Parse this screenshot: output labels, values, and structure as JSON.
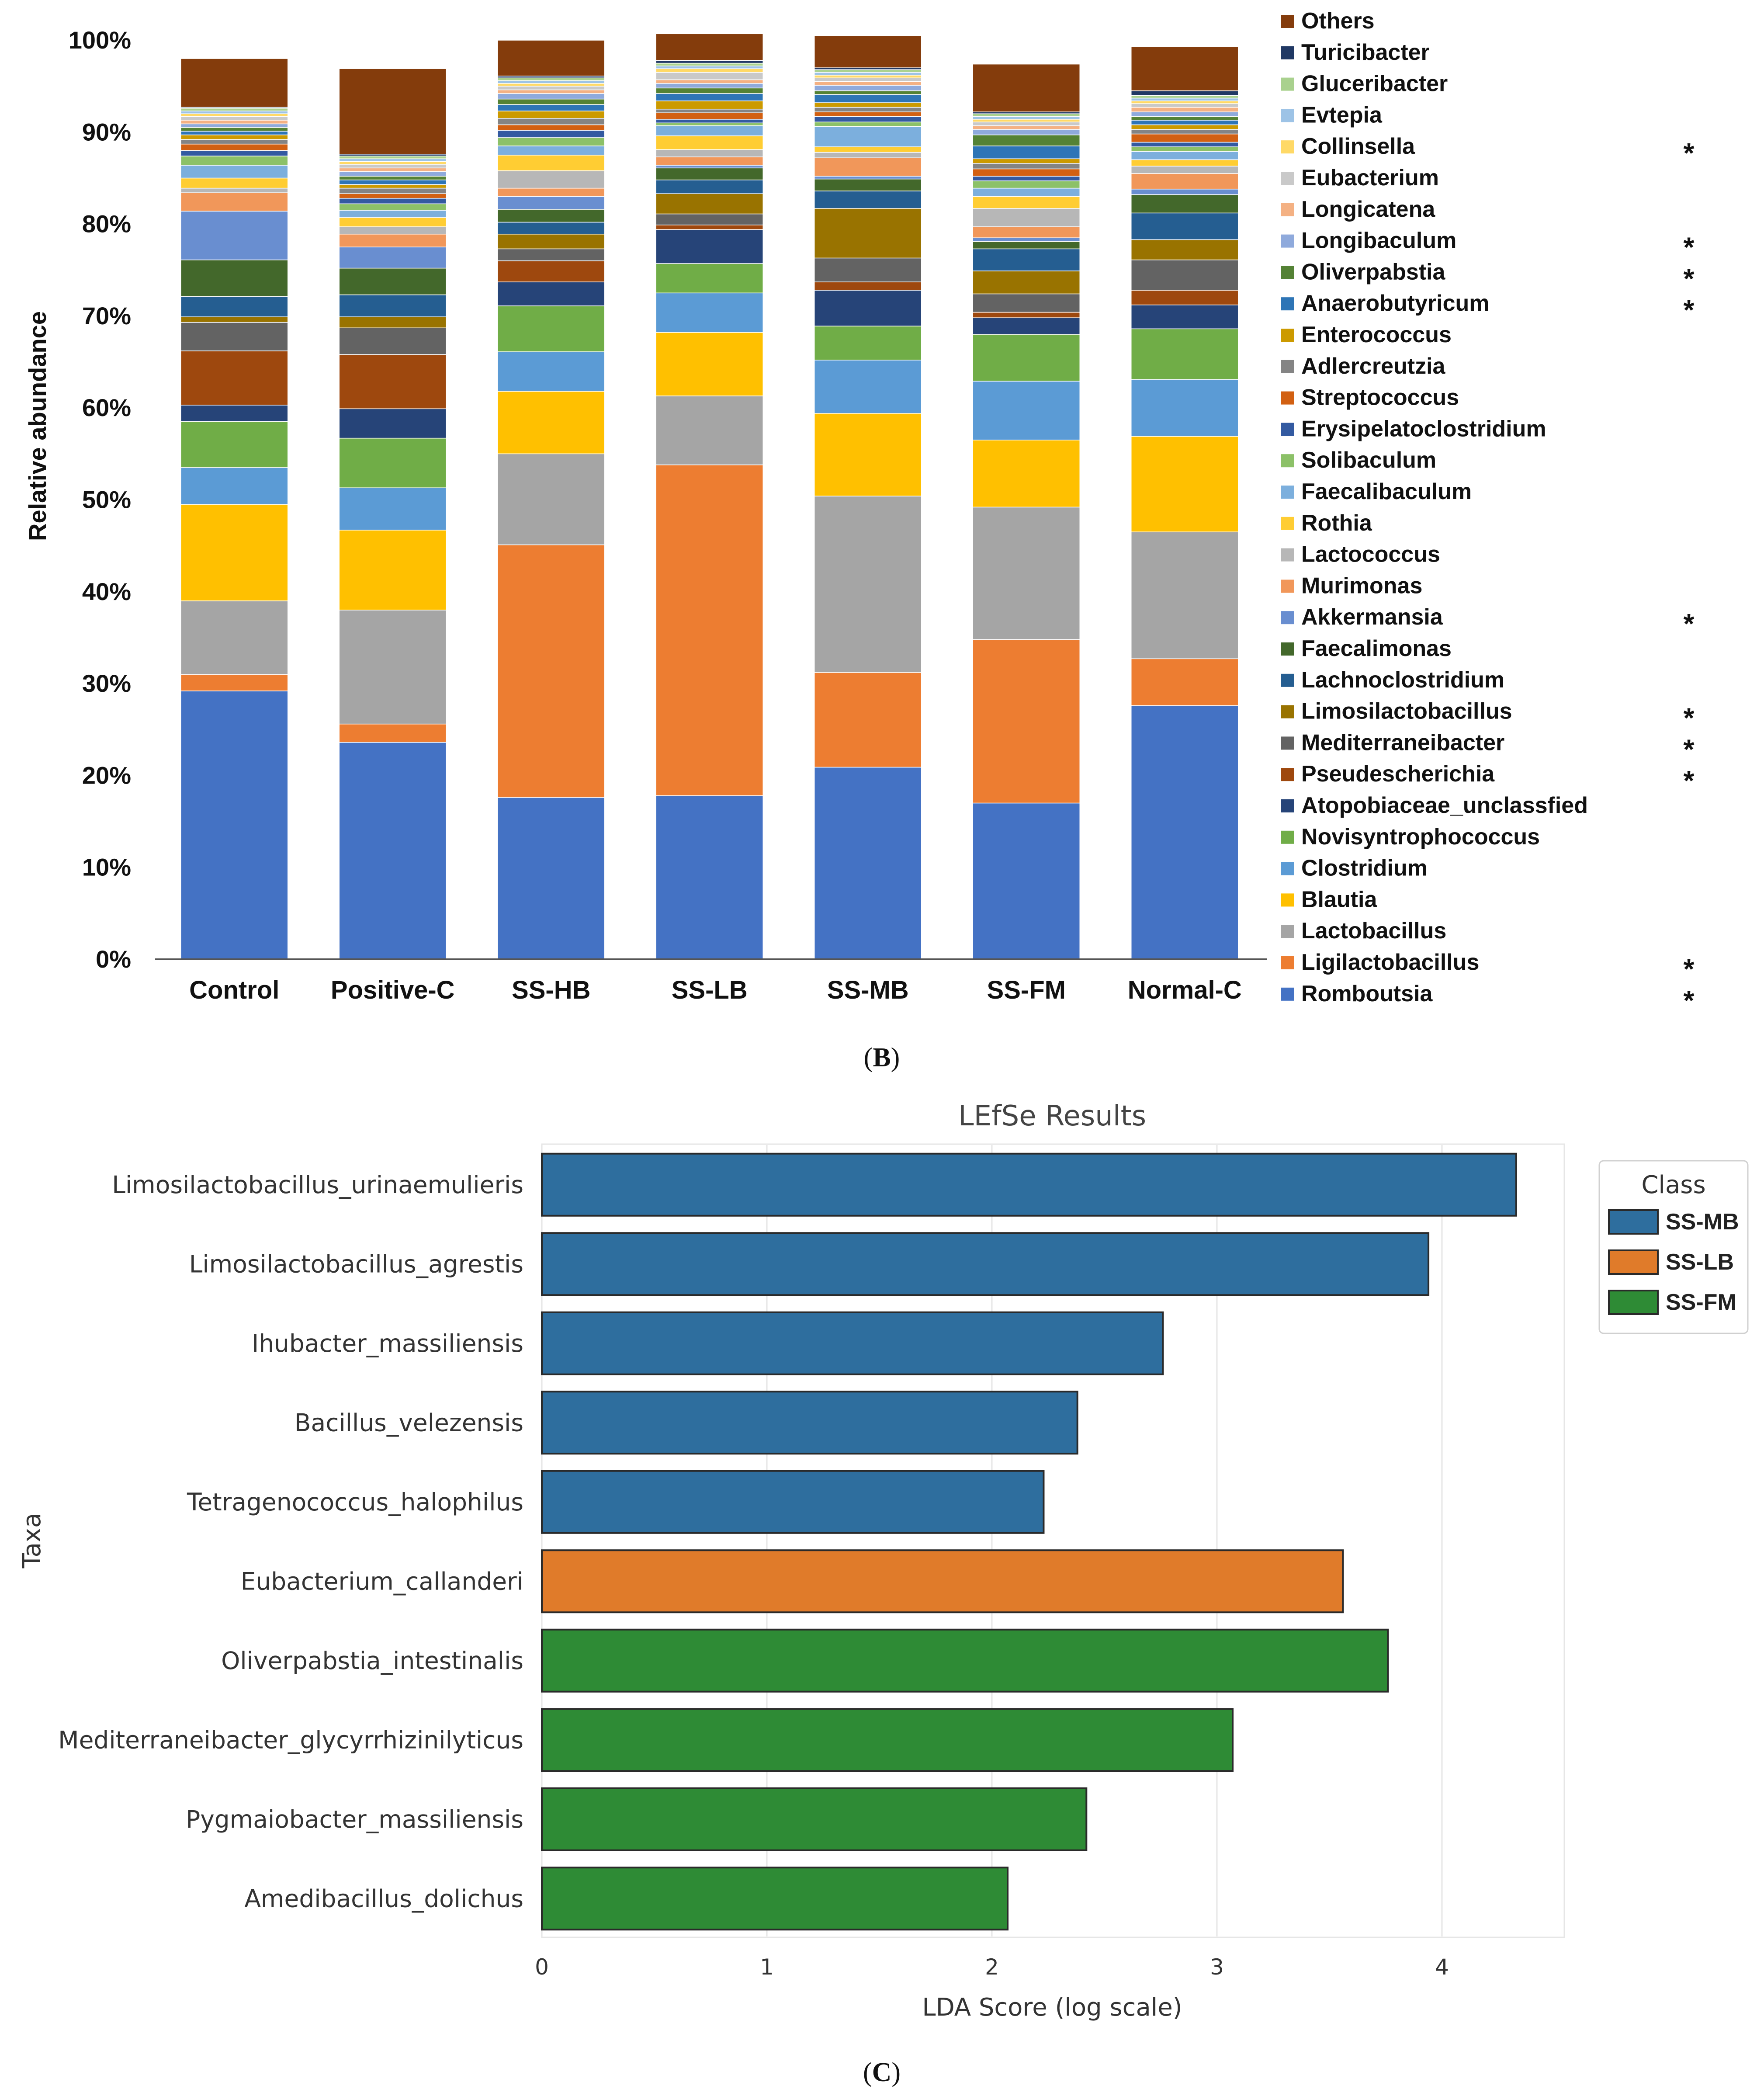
{
  "panel_b": {
    "label_open": "(",
    "label_letter": "B",
    "label_close": ")"
  },
  "panel_c": {
    "label_open": "(",
    "label_letter": "C",
    "label_close": ")"
  },
  "chart_data": [
    {
      "type": "bar",
      "stacked": true,
      "title": "",
      "xlabel": "",
      "ylabel": "Relative abundance",
      "ylim": [
        0,
        100
      ],
      "y_ticks": [
        "0%",
        "10%",
        "20%",
        "30%",
        "40%",
        "50%",
        "60%",
        "70%",
        "80%",
        "90%",
        "100%"
      ],
      "categories": [
        "Control",
        "Positive-C",
        "SS-HB",
        "SS-LB",
        "SS-MB",
        "SS-FM",
        "Normal-C"
      ],
      "legend_position": "right",
      "series": [
        {
          "name": "Romboutsia",
          "color": "#4472C4",
          "star": "*",
          "values": [
            29.2,
            23.6,
            17.6,
            17.8,
            20.9,
            17.0,
            27.6
          ]
        },
        {
          "name": "Ligilactobacillus",
          "color": "#ED7D31",
          "star": "*",
          "values": [
            1.8,
            2.0,
            27.5,
            36.0,
            10.3,
            17.8,
            5.1
          ]
        },
        {
          "name": "Lactobacillus",
          "color": "#A5A5A5",
          "star": "",
          "values": [
            8.0,
            12.4,
            9.9,
            7.5,
            19.2,
            14.4,
            13.8
          ]
        },
        {
          "name": "Blautia",
          "color": "#FFC000",
          "star": "",
          "values": [
            10.5,
            8.7,
            6.8,
            6.9,
            9.0,
            7.3,
            10.4
          ]
        },
        {
          "name": "Clostridium",
          "color": "#5B9BD5",
          "star": "",
          "values": [
            4.0,
            4.6,
            4.3,
            4.3,
            5.8,
            6.4,
            6.2
          ]
        },
        {
          "name": "Novisyntrophococcus",
          "color": "#70AD47",
          "star": "",
          "values": [
            5.0,
            5.4,
            5.0,
            3.2,
            3.7,
            5.1,
            5.5
          ]
        },
        {
          "name": "Atopobiaceae_unclassfied",
          "color": "#264478",
          "star": "",
          "values": [
            1.8,
            3.2,
            2.6,
            3.7,
            3.9,
            1.8,
            2.6
          ]
        },
        {
          "name": "Pseudescherichia",
          "color": "#9E480E",
          "star": "*",
          "values": [
            5.9,
            5.9,
            2.3,
            0.5,
            0.9,
            0.6,
            1.6
          ]
        },
        {
          "name": "Mediterraneibacter",
          "color": "#636363",
          "star": "*",
          "values": [
            3.1,
            2.9,
            1.3,
            1.2,
            2.6,
            2.0,
            3.3
          ]
        },
        {
          "name": "Limosilactobacillus",
          "color": "#997300",
          "star": "*",
          "values": [
            0.6,
            1.2,
            1.6,
            2.2,
            5.4,
            2.5,
            2.2
          ]
        },
        {
          "name": "Lachnoclostridium",
          "color": "#255E91",
          "star": "",
          "values": [
            2.2,
            2.4,
            1.3,
            1.5,
            1.9,
            2.4,
            2.9
          ]
        },
        {
          "name": "Faecalimonas",
          "color": "#43682B",
          "star": "",
          "values": [
            4.0,
            2.9,
            1.4,
            1.3,
            1.3,
            0.8,
            2.0
          ]
        },
        {
          "name": "Akkermansia",
          "color": "#698ED0",
          "star": "*",
          "values": [
            5.3,
            2.3,
            1.4,
            0.3,
            0.3,
            0.4,
            0.6
          ]
        },
        {
          "name": "Murimonas",
          "color": "#F1975A",
          "star": "",
          "values": [
            2.0,
            1.4,
            0.9,
            0.9,
            2.0,
            1.2,
            1.7
          ]
        },
        {
          "name": "Lactococcus",
          "color": "#B7B7B7",
          "star": "",
          "values": [
            0.5,
            0.8,
            1.9,
            0.8,
            0.6,
            2.0,
            0.8
          ]
        },
        {
          "name": "Rothia",
          "color": "#FFCD33",
          "star": "",
          "values": [
            1.1,
            1.0,
            1.7,
            1.5,
            0.6,
            1.3,
            0.7
          ]
        },
        {
          "name": "Faecalibaculum",
          "color": "#7CAFDD",
          "star": "",
          "values": [
            1.4,
            0.8,
            1.0,
            1.1,
            2.2,
            0.9,
            0.9
          ]
        },
        {
          "name": "Solibaculum",
          "color": "#8CC168",
          "star": "",
          "values": [
            1.0,
            0.7,
            0.9,
            0.3,
            0.5,
            0.8,
            0.5
          ]
        },
        {
          "name": "Erysipelatoclostridium",
          "color": "#335AA1",
          "star": "",
          "values": [
            0.6,
            0.6,
            0.8,
            0.4,
            0.6,
            0.5,
            0.5
          ]
        },
        {
          "name": "Streptococcus",
          "color": "#D26012",
          "star": "",
          "values": [
            0.7,
            0.5,
            0.6,
            0.7,
            0.5,
            0.8,
            0.9
          ]
        },
        {
          "name": "Adlercreutzia",
          "color": "#848484",
          "star": "",
          "values": [
            0.5,
            0.6,
            0.7,
            0.4,
            0.5,
            0.6,
            0.5
          ]
        },
        {
          "name": "Enterococcus",
          "color": "#CC9A00",
          "star": "",
          "values": [
            0.5,
            0.4,
            0.8,
            0.9,
            0.5,
            0.5,
            0.5
          ]
        },
        {
          "name": "Anaerobutyricum",
          "color": "#2E75B6",
          "star": "*",
          "values": [
            0.4,
            0.5,
            0.7,
            0.8,
            0.9,
            1.4,
            0.5
          ]
        },
        {
          "name": "Oliverpabstia",
          "color": "#548235",
          "star": "*",
          "values": [
            0.4,
            0.4,
            0.6,
            0.6,
            0.4,
            1.2,
            0.4
          ]
        },
        {
          "name": "Longibaculum",
          "color": "#8FAADC",
          "star": "*",
          "values": [
            0.4,
            0.5,
            0.6,
            0.5,
            0.6,
            0.6,
            0.5
          ]
        },
        {
          "name": "Longicatena",
          "color": "#F4B183",
          "star": "",
          "values": [
            0.4,
            0.4,
            0.4,
            0.4,
            0.4,
            0.4,
            0.5
          ]
        },
        {
          "name": "Eubacterium",
          "color": "#C9C9C9",
          "star": "",
          "values": [
            0.4,
            0.4,
            0.4,
            0.8,
            0.4,
            0.4,
            0.4
          ]
        },
        {
          "name": "Collinsella",
          "color": "#FFD966",
          "star": "*",
          "values": [
            0.3,
            0.3,
            0.3,
            0.4,
            0.3,
            0.3,
            0.3
          ]
        },
        {
          "name": "Evtepia",
          "color": "#9DC3E6",
          "star": "",
          "values": [
            0.3,
            0.3,
            0.3,
            0.3,
            0.3,
            0.3,
            0.3
          ]
        },
        {
          "name": "Gluceribacter",
          "color": "#A9D18E",
          "star": "",
          "values": [
            0.3,
            0.3,
            0.3,
            0.3,
            0.3,
            0.3,
            0.3
          ]
        },
        {
          "name": "Turicibacter",
          "color": "#203864",
          "star": "",
          "values": [
            0.1,
            0.2,
            0.2,
            0.3,
            0.2,
            0.2,
            0.5
          ]
        },
        {
          "name": "Others",
          "color": "#843C0C",
          "star": "",
          "values": [
            5.3,
            9.3,
            3.9,
            2.9,
            3.5,
            5.2,
            4.8
          ]
        }
      ]
    },
    {
      "type": "bar",
      "orientation": "horizontal",
      "title": "LEfSe Results",
      "xlabel": "LDA Score (log scale)",
      "ylabel": "Taxa",
      "xlim": [
        0,
        4.5
      ],
      "x_ticks": [
        "0",
        "1",
        "2",
        "3",
        "4"
      ],
      "x_tick_values": [
        0,
        1,
        2,
        3,
        4
      ],
      "categories": [
        "Limosilactobacillus_urinaemulieris",
        "Limosilactobacillus_agrestis",
        "Ihubacter_massiliensis",
        "Bacillus_velezensis",
        "Tetragenococcus_halophilus",
        "Eubacterium_callanderi",
        "Oliverpabstia_intestinalis",
        "Mediterraneibacter_glycyrrhizinilyticus",
        "Pygmaiobacter_massiliensis",
        "Amedibacillus_dolichus"
      ],
      "values": [
        4.33,
        3.94,
        2.76,
        2.38,
        2.23,
        3.56,
        3.76,
        3.07,
        2.42,
        2.07
      ],
      "classes": [
        "SS-MB",
        "SS-MB",
        "SS-MB",
        "SS-MB",
        "SS-MB",
        "SS-LB",
        "SS-FM",
        "SS-FM",
        "SS-FM",
        "SS-FM"
      ],
      "legend": {
        "title": "Class",
        "position": "top-right",
        "entries": [
          {
            "name": "SS-MB",
            "color": "#2E6E9E"
          },
          {
            "name": "SS-LB",
            "color": "#E07B2A"
          },
          {
            "name": "SS-FM",
            "color": "#2E8B35"
          }
        ]
      }
    }
  ]
}
